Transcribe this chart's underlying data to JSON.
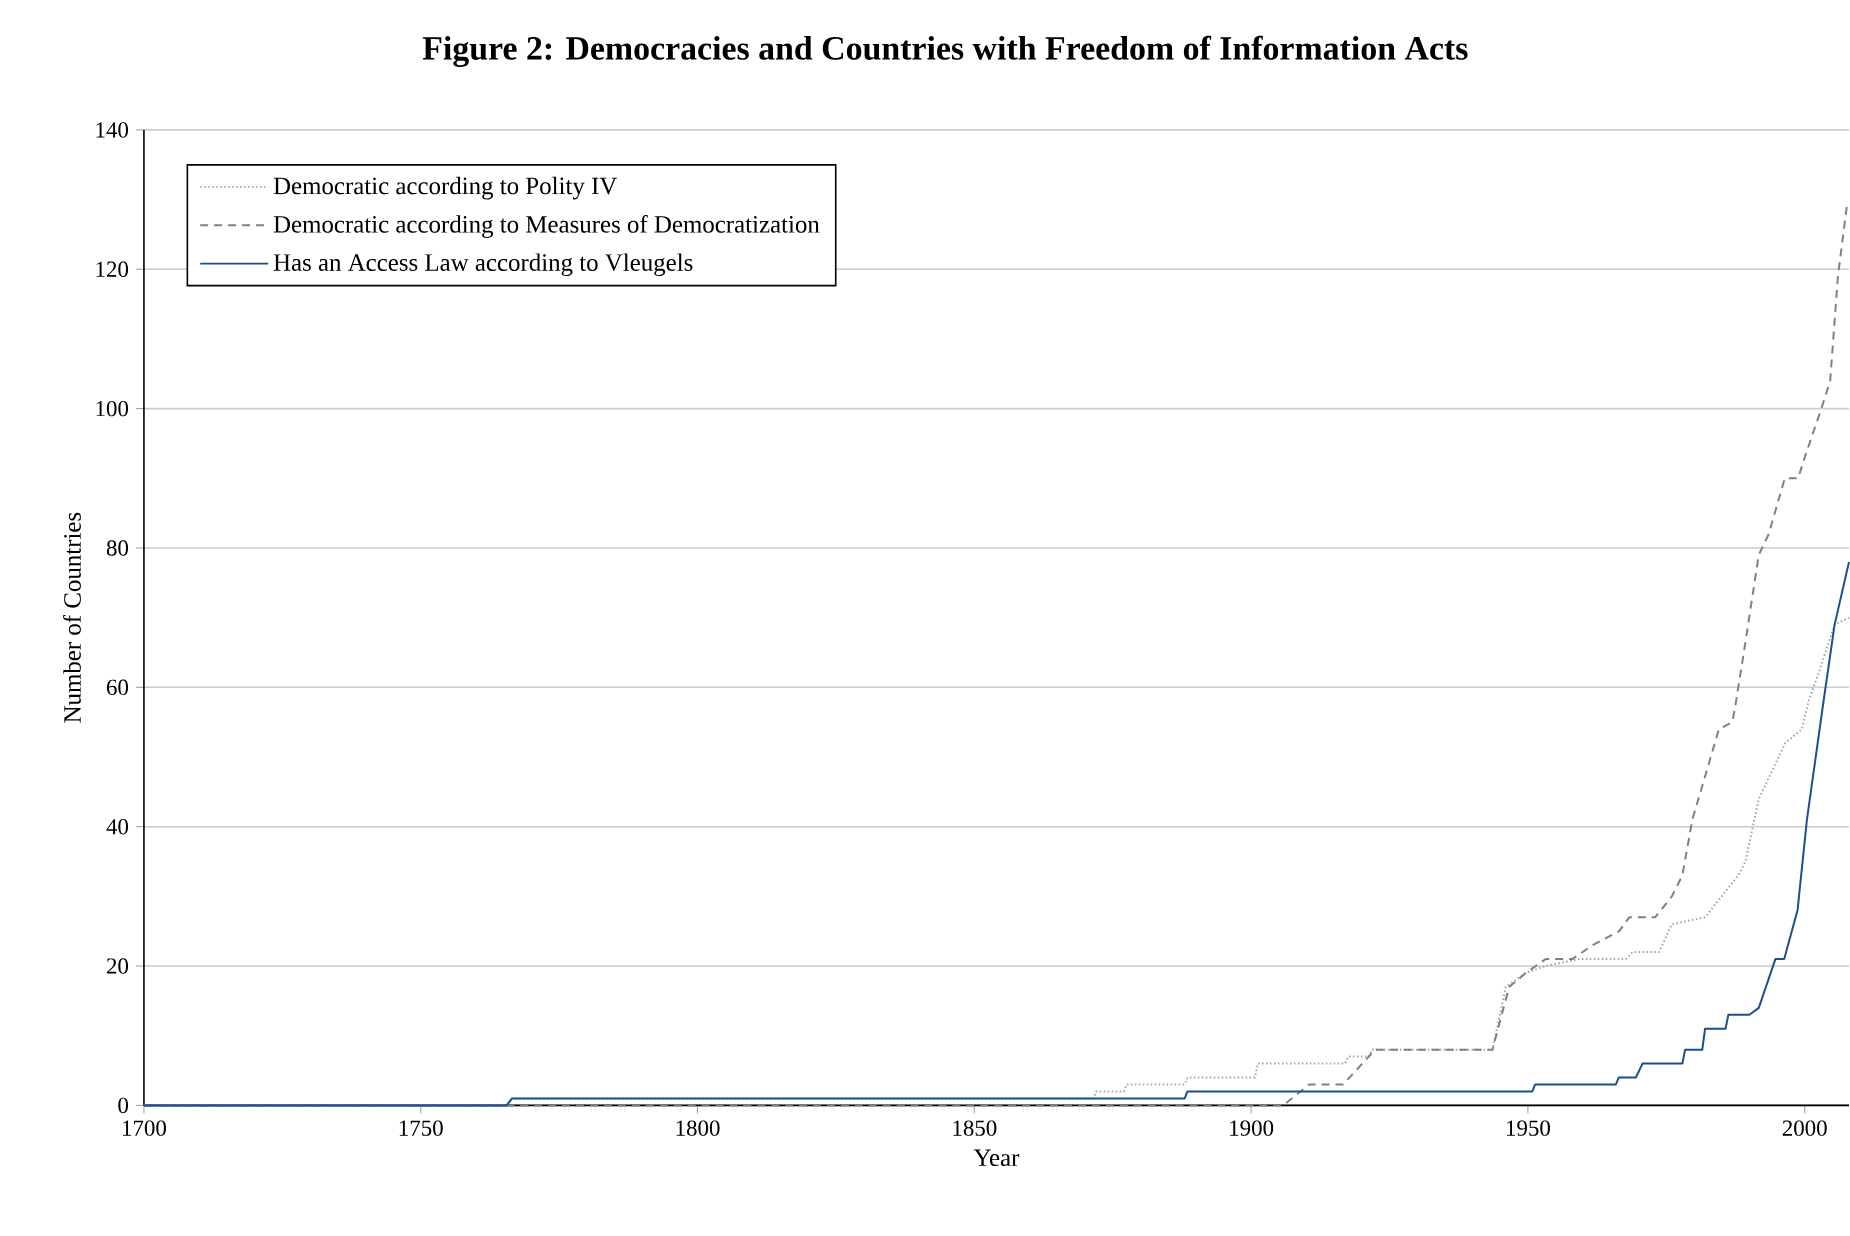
{
  "chart_data": {
    "type": "line",
    "title": "Figure 2: Democracies and Countries with Freedom of Information Acts",
    "xlabel": "Year",
    "ylabel": "Number of Countries",
    "xlim": [
      1700,
      2008
    ],
    "xticks": [
      1700,
      1750,
      1800,
      1850,
      1900,
      1950,
      2000
    ],
    "ylim": [
      0,
      140
    ],
    "yticks": [
      0,
      20,
      40,
      60,
      80,
      100,
      120,
      140
    ],
    "grid": "y",
    "legend": "top left",
    "series": [
      {
        "name": "Democratic according to Polity IV",
        "color": "#a6a6a6",
        "line_style": "dotted",
        "x": [
          1700,
          1765.5,
          1766.5,
          1871.5,
          1872,
          1877,
          1877.5,
          1888,
          1888.5,
          1900.7,
          1901.2,
          1917,
          1917.5,
          1921.3,
          1921.8,
          1943.6,
          1946,
          1949.6,
          1953.2,
          1959.3,
          1967.7,
          1968.9,
          1973.7,
          1976,
          1982,
          1988,
          1989.3,
          1991.7,
          1994.7,
          1996.5,
          1999.5,
          2000.7,
          2002.5,
          2005.4,
          2008
        ],
        "values": [
          0,
          0,
          1,
          1,
          2,
          2,
          3,
          3,
          4,
          4,
          6,
          6,
          7,
          7,
          8,
          8,
          17,
          19,
          20,
          21,
          21,
          22,
          22,
          26,
          27,
          33,
          35,
          44,
          49,
          52,
          54,
          58,
          62,
          69,
          70
        ]
      },
      {
        "name": "Democratic according to Measures of Democratization",
        "color": "#808080",
        "line_style": "dashed",
        "x": [
          1700,
          1905.8,
          1910.5,
          1916.6,
          1922.4,
          1943.6,
          1946.6,
          1949.6,
          1953.2,
          1958,
          1961.7,
          1966.5,
          1968.3,
          1973,
          1976,
          1977.9,
          1979.7,
          1984.5,
          1986.9,
          1987.4,
          1989,
          1991.7,
          1993.5,
          1996.4,
          1998.8,
          2000,
          2003,
          2004.6,
          2006,
          2007.6
        ],
        "values": [
          0,
          0,
          3,
          3,
          8,
          8,
          17,
          19,
          21,
          21,
          23,
          25,
          27,
          27,
          30,
          33,
          41,
          54,
          55,
          57,
          65,
          79,
          82,
          90,
          90,
          93,
          100,
          104,
          119,
          129
        ]
      },
      {
        "name": "Has an Access Law according to Vleugels",
        "color": "#1f4e8c",
        "line_style": "solid",
        "x": [
          1700,
          1765.5,
          1766.5,
          1888,
          1888.5,
          1950.8,
          1951.3,
          1965.9,
          1966.4,
          1969.5,
          1970.7,
          1977.9,
          1978.4,
          1981.5,
          1982,
          1985.7,
          1986.2,
          1990,
          1991.7,
          1994.7,
          1996.3,
          1998.7,
          2000.4,
          2003.4,
          2005.4,
          2008
        ],
        "values": [
          0,
          0,
          1,
          1,
          2,
          2,
          3,
          3,
          4,
          4,
          6,
          6,
          8,
          8,
          11,
          11,
          13,
          13,
          14,
          21,
          21,
          28,
          41,
          58,
          69,
          78
        ]
      }
    ]
  }
}
